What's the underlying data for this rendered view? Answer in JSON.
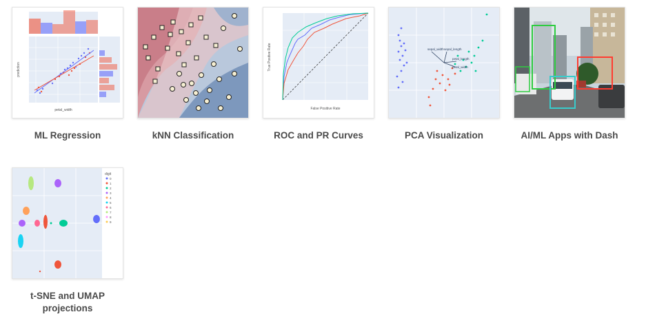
{
  "gallery": {
    "items": [
      {
        "title": "ML Regression",
        "icon": "ml-regression-thumbnail"
      },
      {
        "title": "kNN Classification",
        "icon": "knn-classification-thumbnail"
      },
      {
        "title": "ROC and PR Curves",
        "icon": "roc-pr-curves-thumbnail"
      },
      {
        "title": "PCA Visualization",
        "icon": "pca-visualization-thumbnail"
      },
      {
        "title": "AI/ML Apps with Dash",
        "icon": "dash-apps-thumbnail"
      },
      {
        "title": "t-SNE and UMAP projections",
        "icon": "tsne-umap-thumbnail"
      }
    ]
  },
  "thumb_text": {
    "regression": {
      "xlabel": "petal_width",
      "ylabel": "prediction"
    },
    "roc": {
      "xlabel": "False Positive Rate",
      "ylabel": "True Positive Rate"
    },
    "pca": {
      "l1": "sepal_width",
      "l2": "sepal_length",
      "l3": "petal_length",
      "l4": "petal_width"
    },
    "tsne": {
      "legend_title": "digit",
      "digits": [
        "0",
        "1",
        "2",
        "3",
        "4",
        "5",
        "6",
        "7",
        "8",
        "9"
      ]
    }
  }
}
